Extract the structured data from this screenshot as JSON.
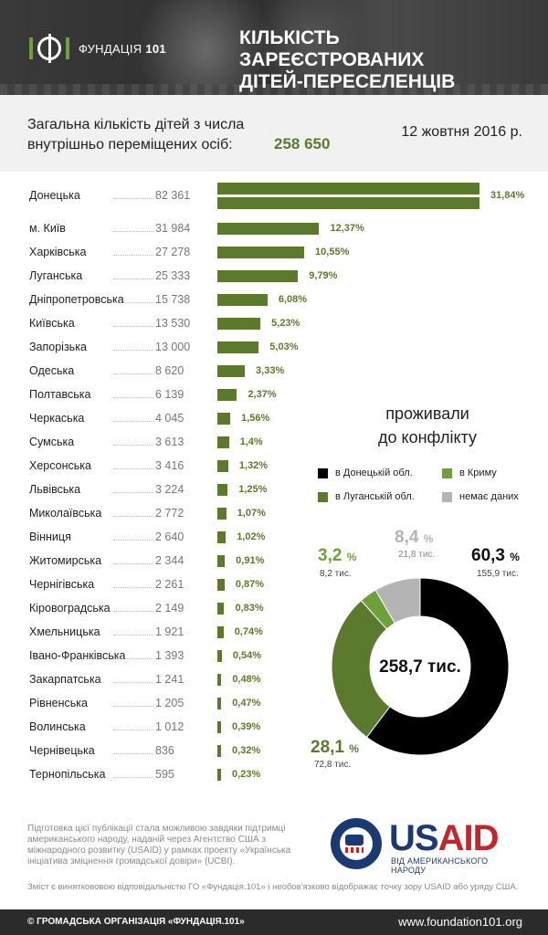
{
  "header": {
    "logo_text_prefix": "ФУНДАЦІЯ",
    "logo_text_number": "101",
    "title_line1": "КІЛЬКІСТЬ ЗАРЕЄСТРОВАНИХ",
    "title_line2": "ДІТЕЙ-ПЕРЕСЕЛЕНЦІВ"
  },
  "summary": {
    "label_line1": "Загальна кількість дітей з числа",
    "label_line2": "внутрішньо переміщених осіб:",
    "total": "258 650",
    "date": "12 жовтня 2016 р."
  },
  "colors": {
    "accent": "#5b7a2e",
    "donetsk": "#000000",
    "luhansk": "#5b7a2e",
    "crimea": "#6ea03c",
    "no_data": "#b4b4b4"
  },
  "chart_data": [
    {
      "type": "bar",
      "categories": [
        "Донецька",
        "м. Київ",
        "Харківська",
        "Луганська",
        "Дніпропетровська",
        "Київська",
        "Запорізька",
        "Одеська",
        "Полтавська",
        "Черкаська",
        "Сумська",
        "Херсонська",
        "Львівська",
        "Миколаївська",
        "Вінниця",
        "Житомирська",
        "Чернігівська",
        "Кіровоградська",
        "Хмельницька",
        "Івано-Франківська",
        "Закарпатська",
        "Рівненська",
        "Волинська",
        "Чернівецька",
        "Тернопільська"
      ],
      "value_labels": [
        "82 361",
        "31 984",
        "27 278",
        "25 333",
        "15 738",
        "13 530",
        "13 000",
        "8 620",
        "6 139",
        "4 045",
        "3 613",
        "3 416",
        "3 224",
        "2 772",
        "2 640",
        "2 344",
        "2 261",
        "2 149",
        "1 921",
        "1 393",
        "1 241",
        "1 205",
        "1 012",
        "836",
        "595"
      ],
      "values": [
        82361,
        31984,
        27278,
        25333,
        15738,
        13530,
        13000,
        8620,
        6139,
        4045,
        3613,
        3416,
        3224,
        2772,
        2640,
        2344,
        2261,
        2149,
        1921,
        1393,
        1241,
        1205,
        1012,
        836,
        595
      ],
      "percent_labels": [
        "31,84%",
        "12,37%",
        "10,55%",
        "9,79%",
        "6,08%",
        "5,23%",
        "5,03%",
        "3,33%",
        "2,37%",
        "1,56%",
        "1,4%",
        "1,32%",
        "1,25%",
        "1,07%",
        "1,02%",
        "0,91%",
        "0,87%",
        "0,83%",
        "0,74%",
        "0,54%",
        "0,48%",
        "0,47%",
        "0,39%",
        "0,32%",
        "0,23%"
      ],
      "percents": [
        31.84,
        12.37,
        10.55,
        9.79,
        6.08,
        5.23,
        5.03,
        3.33,
        2.37,
        1.56,
        1.4,
        1.32,
        1.25,
        1.07,
        1.02,
        0.91,
        0.87,
        0.83,
        0.74,
        0.54,
        0.48,
        0.47,
        0.39,
        0.32,
        0.23
      ],
      "orientation": "horizontal"
    },
    {
      "type": "pie",
      "title_line1": "проживали",
      "title_line2": "до конфлікту",
      "center_label": "258,7 тис.",
      "legend": [
        {
          "label": "в Донецькій обл.",
          "color": "#000000"
        },
        {
          "label": "в Криму",
          "color": "#6ea03c"
        },
        {
          "label": "в Луганській обл.",
          "color": "#5b7a2e"
        },
        {
          "label": "немає даних",
          "color": "#b4b4b4"
        }
      ],
      "slices": [
        {
          "name": "в Донецькій обл.",
          "value": 60.3,
          "pct_label": "60,3",
          "sub_label": "155,9 тис.",
          "color": "#000000"
        },
        {
          "name": "в Луганській обл.",
          "value": 28.1,
          "pct_label": "28,1",
          "sub_label": "72,8 тис.",
          "color": "#5b7a2e"
        },
        {
          "name": "в Криму",
          "value": 3.2,
          "pct_label": "3,2",
          "sub_label": "8,2 тис.",
          "color": "#6ea03c"
        },
        {
          "name": "немає даних",
          "value": 8.4,
          "pct_label": "8,4",
          "sub_label": "21,8 тис.",
          "color": "#b4b4b4"
        }
      ],
      "pct_sign": "%"
    }
  ],
  "footer": {
    "note": "Підготовка цієї публікації стала можливою завдяки підтримці американського народу, наданій через Агентство США з міжнародного розвитку (USAID) у рамках проекту «Українська ініціатива зміцнення громадської довіри» (UCBI).",
    "usaid_u": "US",
    "usaid_aid": "AID",
    "usaid_sub": "ВІД АМЕРИКАНСЬКОГО НАРОДУ",
    "disclaimer": "Зміст є виняткововою відповідальністю ГО «Фундація.101» і необов'язково відображає точку зору USAID або уряду США.",
    "copyright": "© ГРОМАДСЬКА ОРГАНІЗАЦІЯ «ФУНДАЦІЯ.101»",
    "website": "www.foundation101.org"
  }
}
